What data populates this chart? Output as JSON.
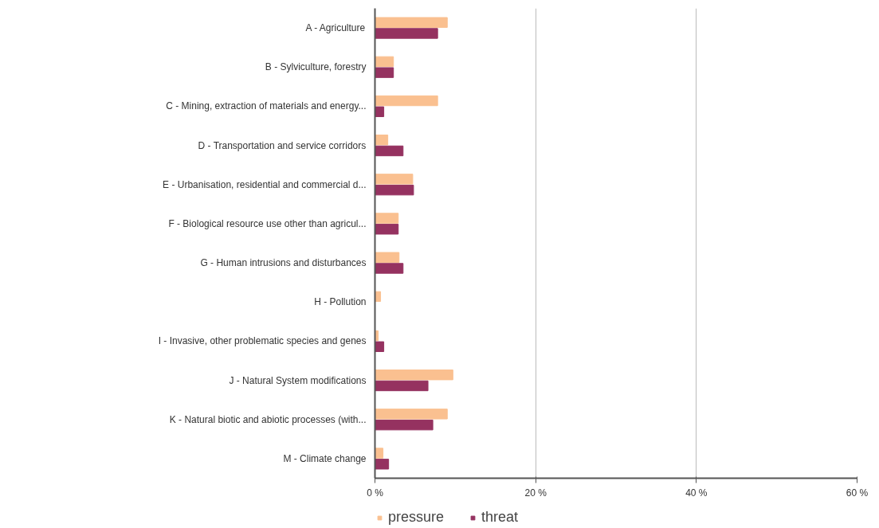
{
  "chart_data": {
    "type": "bar",
    "orientation": "horizontal",
    "categories": [
      "A - Agriculture",
      "B - Sylviculture, forestry",
      "C - Mining, extraction of materials and energy...",
      "D - Transportation and service corridors",
      "E - Urbanisation, residential and commercial d...",
      "F - Biological resource use other than agricul...",
      "G - Human intrusions and disturbances",
      "H - Pollution",
      "I - Invasive, other problematic species and genes",
      "J - Natural System modifications",
      "K - Natural biotic and abiotic processes (with...",
      "M - Climate change"
    ],
    "series": [
      {
        "name": "pressure",
        "color": "#fac090",
        "values": [
          9.0,
          2.3,
          7.8,
          1.6,
          4.7,
          2.9,
          3.0,
          0.7,
          0.4,
          9.7,
          9.0,
          1.0
        ]
      },
      {
        "name": "threat",
        "color": "#953260",
        "values": [
          7.8,
          2.3,
          1.1,
          3.5,
          4.8,
          2.9,
          3.5,
          0,
          1.1,
          6.6,
          7.2,
          1.7
        ]
      }
    ],
    "xlim": [
      0,
      60
    ],
    "xticks": [
      {
        "value": 0,
        "label": "0 %"
      },
      {
        "value": 20,
        "label": "20 %"
      },
      {
        "value": 40,
        "label": "40 %"
      },
      {
        "value": 60,
        "label": "60 %"
      }
    ],
    "grid": "x",
    "legend": "bottom left"
  }
}
